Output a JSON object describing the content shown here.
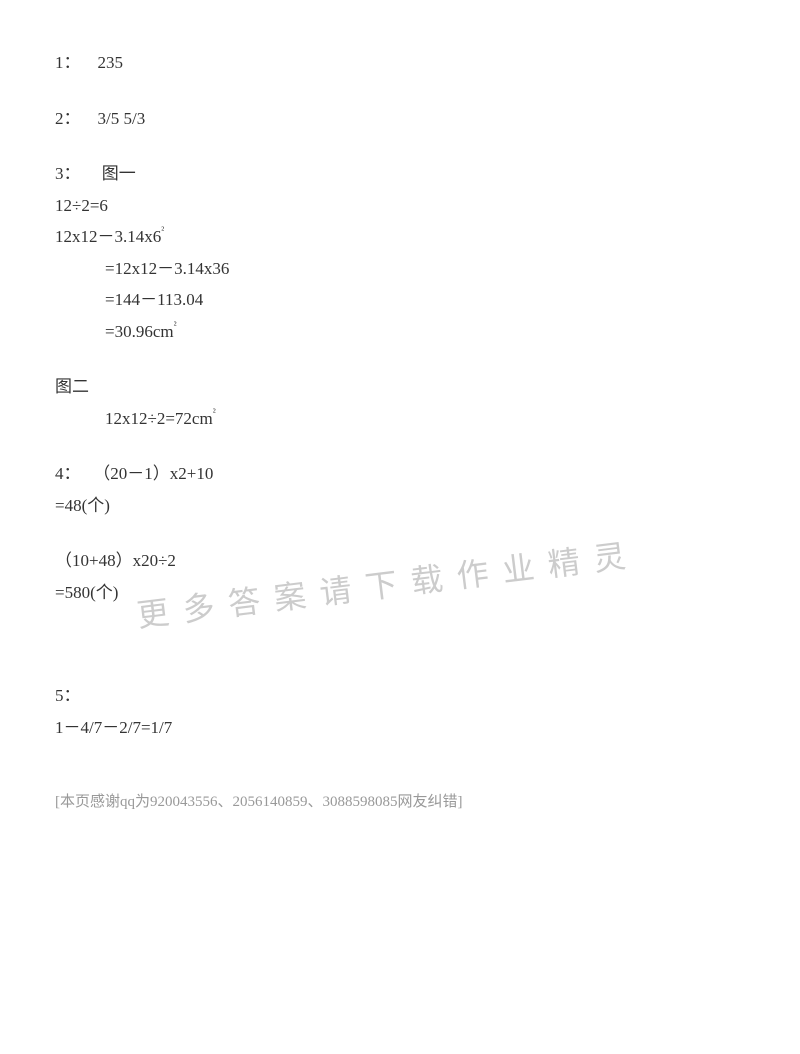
{
  "q1": {
    "label": "1：",
    "answer": "235"
  },
  "q2": {
    "label": "2：",
    "answer": "3/5 5/3"
  },
  "q3": {
    "label": "3：",
    "fig1_label": "图一",
    "step1": "12÷2=6",
    "step2_lhs": "12x12－3.14x6",
    "exp2": "²",
    "step3": "=12x12－3.14x36",
    "step4": "=144－113.04",
    "step5_lhs": "=30.96cm",
    "exp5": "²",
    "fig2_label": "图二",
    "fig2_calc_lhs": "12x12÷2=72cm",
    "fig2_exp": "²"
  },
  "q4": {
    "label": "4：",
    "expr1": "（20－1）x2+10",
    "res1": "=48(个)",
    "expr2": "（10+48）x20÷2",
    "res2": "=580(个)"
  },
  "q5": {
    "label": "5：",
    "expr": "1－4/7－2/7=1/7"
  },
  "footer": "[本页感谢qq为920043556、2056140859、3088598085网友纠错]",
  "watermark": "更多答案请下载作业精灵"
}
